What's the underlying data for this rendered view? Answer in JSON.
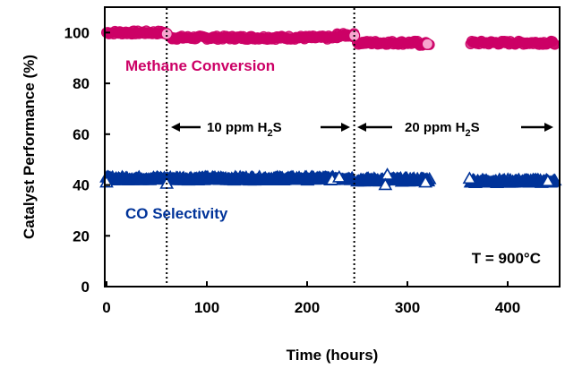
{
  "chart_data": {
    "type": "scatter",
    "title": "",
    "xlabel": "Time (hours)",
    "ylabel": "Catalyst Performance (%)",
    "xlim": [
      0,
      450
    ],
    "ylim": [
      0,
      110
    ],
    "xticks": [
      "0",
      "100",
      "200",
      "300",
      "400"
    ],
    "yticks": [
      "0",
      "20",
      "40",
      "60",
      "80",
      "100"
    ],
    "grid": false,
    "legend": "none",
    "series": [
      {
        "name": "Methane Conversion",
        "color": "#cc0066",
        "marker": "circle",
        "segments": [
          {
            "x_start": 0,
            "x_end": 60,
            "y": 100
          },
          {
            "x_start": 63,
            "x_end": 230,
            "y": 98
          },
          {
            "x_start": 230,
            "x_end": 247,
            "y": 99
          },
          {
            "x_start": 250,
            "x_end": 310,
            "y": 96
          },
          {
            "x_start": 310,
            "x_end": 322,
            "y": 95.5
          },
          {
            "x_start": 363,
            "x_end": 447,
            "y": 96
          }
        ]
      },
      {
        "name": "CO Selectivity",
        "color": "#003399",
        "marker": "triangle",
        "segments": [
          {
            "x_start": 0,
            "x_end": 247,
            "y": 42.5
          },
          {
            "x_start": 250,
            "x_end": 322,
            "y": 42
          },
          {
            "x_start": 363,
            "x_end": 447,
            "y": 41.5
          }
        ],
        "outliers": [
          {
            "x": 0,
            "y": 41
          },
          {
            "x": 60,
            "y": 40.5
          },
          {
            "x": 225,
            "y": 42
          },
          {
            "x": 232,
            "y": 43
          },
          {
            "x": 280,
            "y": 44
          },
          {
            "x": 278,
            "y": 40
          },
          {
            "x": 318,
            "y": 41
          },
          {
            "x": 362,
            "y": 42.5
          },
          {
            "x": 440,
            "y": 41.5
          }
        ]
      }
    ],
    "vertical_lines": [
      {
        "x": 60,
        "style": "dotted"
      },
      {
        "x": 247,
        "style": "dotted"
      }
    ],
    "annotations": {
      "h2s_10": {
        "prefix": "10 ppm H",
        "sub": "2",
        "suffix": "S",
        "x_from": 60,
        "x_to": 247,
        "y": 64
      },
      "h2s_20": {
        "prefix": "20 ppm H",
        "sub": "2",
        "suffix": "S",
        "x_from": 247,
        "x_to": 450,
        "y": 64
      },
      "temperature": "T = 900°C"
    }
  }
}
